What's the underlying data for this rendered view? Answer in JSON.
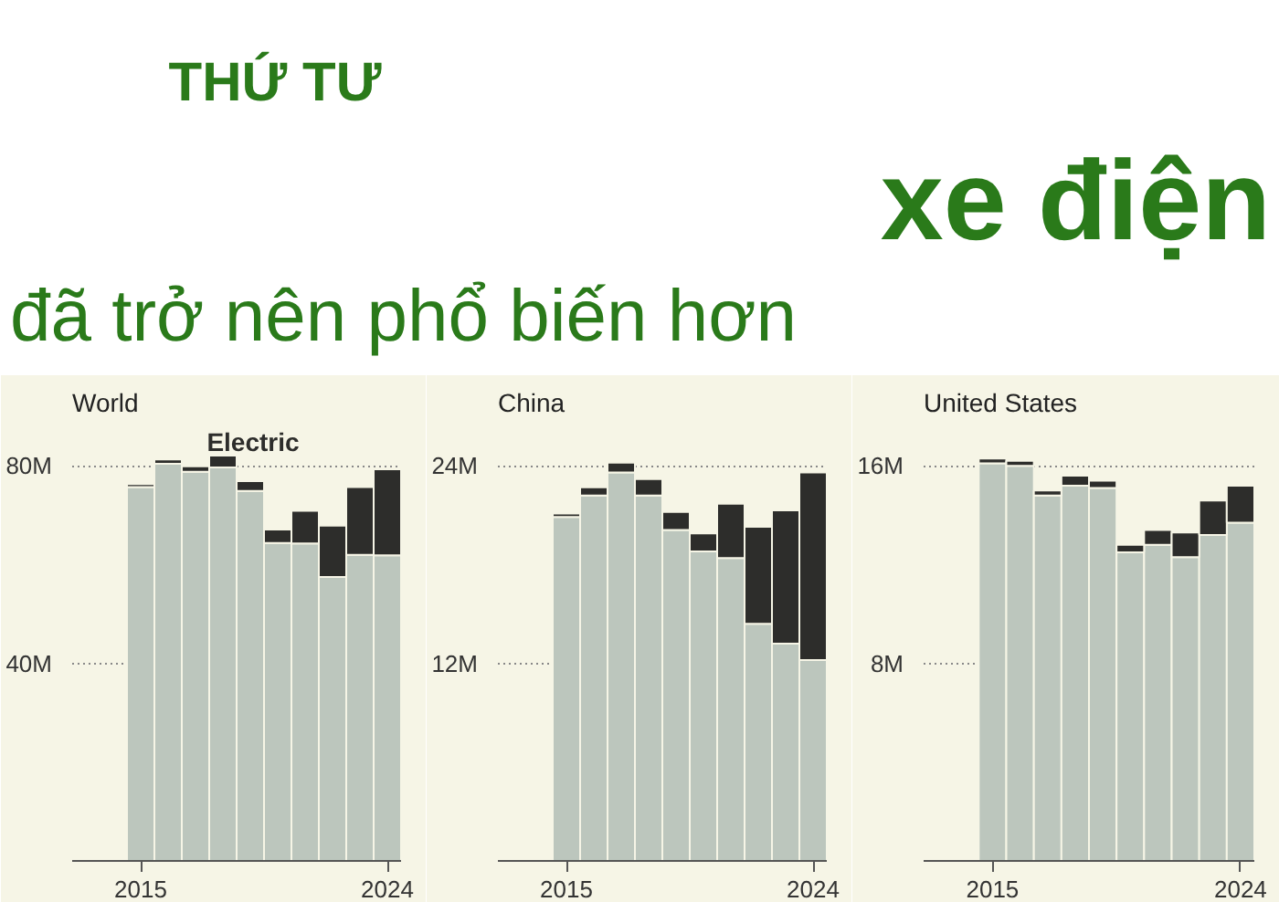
{
  "chart_data": [
    {
      "type": "bar",
      "title": "World",
      "stacked": true,
      "annotations": [
        "THỨ TƯ",
        "xe điện",
        "đã trở nên phổ biến hơn"
      ],
      "x": [
        2015,
        2016,
        2017,
        2018,
        2019,
        2020,
        2021,
        2022,
        2023,
        2024
      ],
      "series": [
        {
          "color": "#bcc6bd",
          "values": [
            75.7,
            80.4,
            78.8,
            79.7,
            74.9,
            64.4,
            64.3,
            57.5,
            62.0,
            61.9
          ]
        },
        {
          "name": "Electric",
          "color": "#2d2d2b",
          "values": [
            0.6,
            0.9,
            1.1,
            2.4,
            2.0,
            2.7,
            6.6,
            10.4,
            13.7,
            17.4
          ]
        }
      ],
      "xlim": [
        2012.5,
        2024.5
      ],
      "xticks": [
        2015,
        2024
      ],
      "ylim": [
        0,
        88
      ],
      "yticks": [
        {
          "value": 40,
          "label": "40M"
        },
        {
          "value": 80,
          "label": "80M"
        }
      ],
      "grid": "y",
      "legend": false
    },
    {
      "type": "bar",
      "title": "China",
      "stacked": true,
      "x": [
        2015,
        2016,
        2017,
        2018,
        2019,
        2020,
        2021,
        2022,
        2023,
        2024
      ],
      "series": [
        {
          "color": "#bcc6bd",
          "values": [
            20.9,
            22.2,
            23.6,
            22.2,
            20.1,
            18.8,
            18.4,
            14.4,
            13.2,
            12.2
          ]
        },
        {
          "color": "#2d2d2b",
          "values": [
            0.2,
            0.5,
            0.6,
            1.0,
            1.1,
            1.1,
            3.3,
            5.9,
            8.1,
            11.4
          ]
        }
      ],
      "xlim": [
        2012.5,
        2024.5
      ],
      "xticks": [
        2015,
        2024
      ],
      "ylim": [
        0,
        26.4
      ],
      "yticks": [
        {
          "value": 12,
          "label": "12M"
        },
        {
          "value": 24,
          "label": "24M"
        }
      ],
      "grid": "y",
      "legend": false
    },
    {
      "type": "bar",
      "title": "United States",
      "stacked": true,
      "x": [
        2015,
        2016,
        2017,
        2018,
        2019,
        2020,
        2021,
        2022,
        2023,
        2024
      ],
      "series": [
        {
          "color": "#bcc6bd",
          "values": [
            16.1,
            16.0,
            14.8,
            15.2,
            15.1,
            12.5,
            12.8,
            12.3,
            13.2,
            13.7
          ]
        },
        {
          "color": "#2d2d2b",
          "values": [
            0.2,
            0.2,
            0.2,
            0.4,
            0.3,
            0.3,
            0.6,
            1.0,
            1.4,
            1.5
          ]
        }
      ],
      "xlim": [
        2012.5,
        2024.5
      ],
      "xticks": [
        2015,
        2024
      ],
      "ylim": [
        0,
        17.6
      ],
      "yticks": [
        {
          "value": 8,
          "label": "8M"
        },
        {
          "value": 16,
          "label": "16M"
        }
      ],
      "grid": "y",
      "legend": false
    }
  ]
}
